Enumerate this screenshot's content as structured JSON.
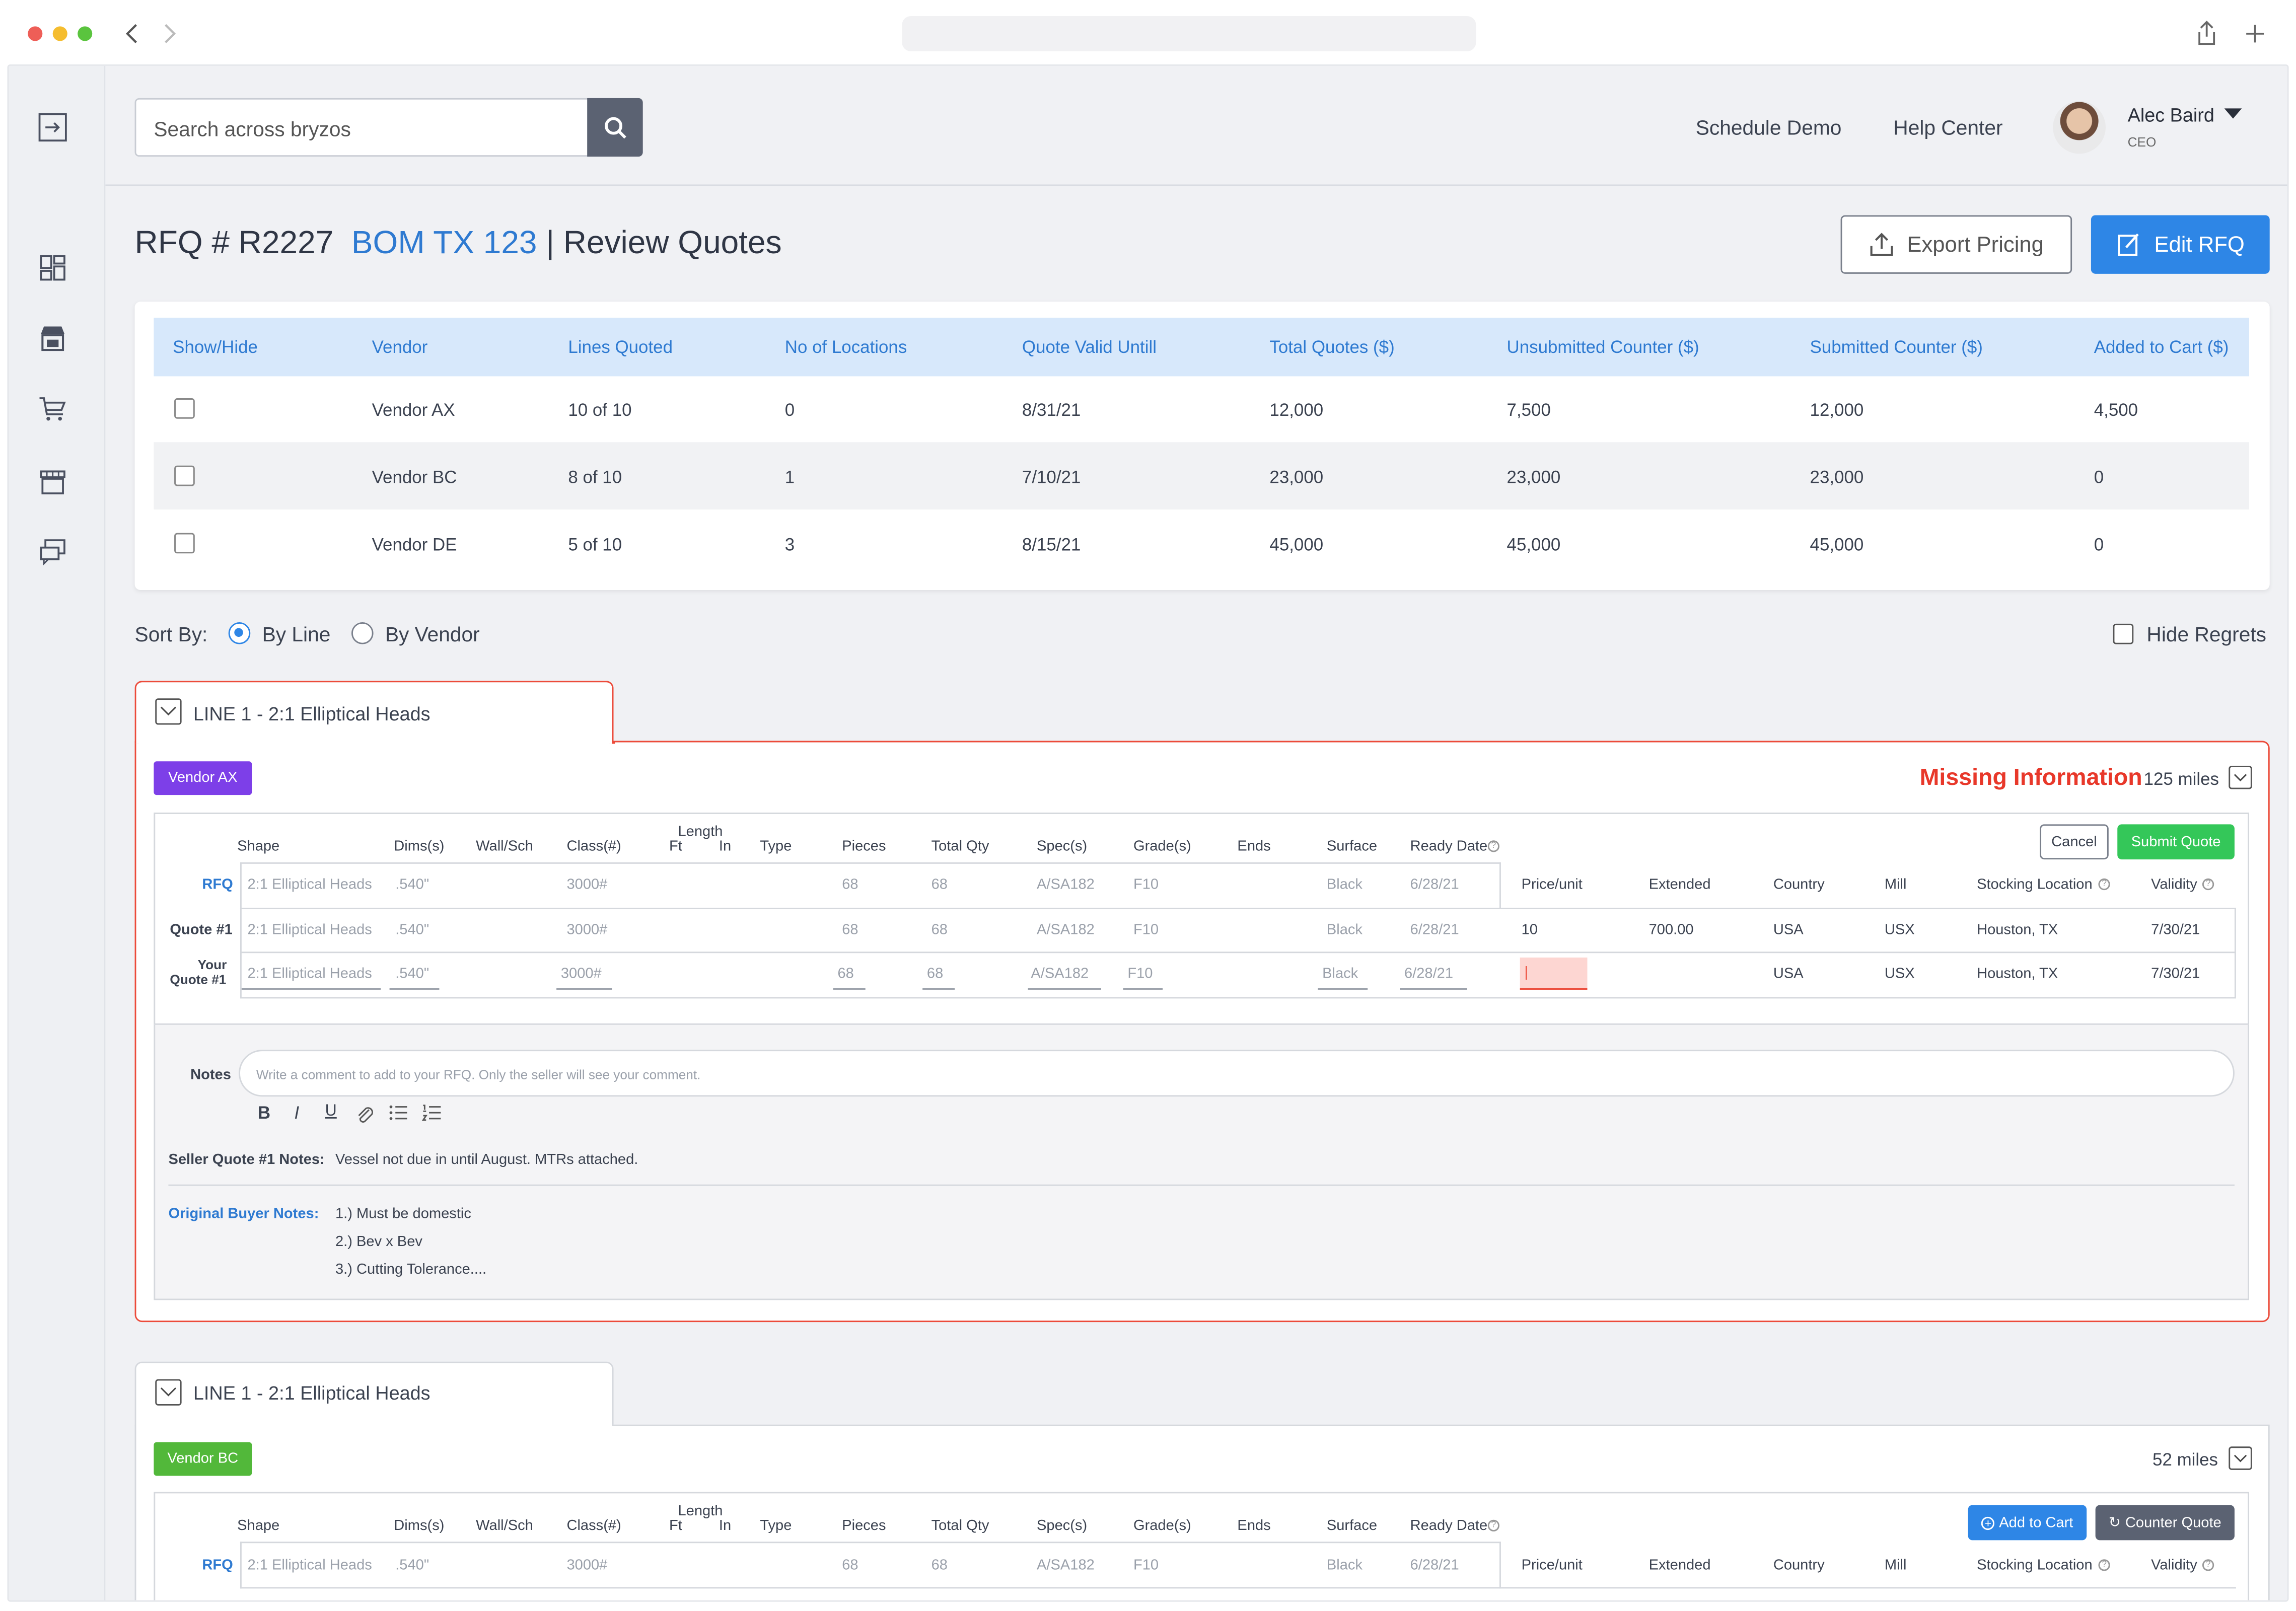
{
  "window": {
    "traffic": [
      "#ee5e57",
      "#f5bd2f",
      "#5ac43e"
    ]
  },
  "topbar": {
    "search_placeholder": "Search across bryzos",
    "schedule_demo": "Schedule Demo",
    "help_center": "Help Center",
    "user_name": "Alec Baird",
    "user_role": "CEO"
  },
  "sidebar": {
    "icons": [
      "exit-icon",
      "dashboard-icon",
      "storefront-icon",
      "cart-icon",
      "store-icon",
      "chat-icon"
    ]
  },
  "page": {
    "title_prefix": "RFQ # R2227",
    "title_link": "BOM TX 123",
    "title_suffix": "| Review Quotes",
    "export_label": "Export Pricing",
    "edit_label": "Edit RFQ"
  },
  "summary": {
    "headers": [
      "Show/Hide",
      "Vendor",
      "Lines Quoted",
      "No of Locations",
      "Quote Valid Untill",
      "Total Quotes ($)",
      "Unsubmitted Counter ($)",
      "Submitted Counter ($)",
      "Added to Cart ($)"
    ],
    "rows": [
      [
        "Vendor AX",
        "10 of 10",
        "0",
        "8/31/21",
        "12,000",
        "7,500",
        "12,000",
        "4,500"
      ],
      [
        "Vendor BC",
        "8 of 10",
        "1",
        "7/10/21",
        "23,000",
        "23,000",
        "23,000",
        "0"
      ],
      [
        "Vendor DE",
        "5 of 10",
        "3",
        "8/15/21",
        "45,000",
        "45,000",
        "45,000",
        "0"
      ]
    ]
  },
  "sort": {
    "label": "Sort By:",
    "by_line": "By Line",
    "by_vendor": "By Vendor",
    "hide_regrets": "Hide Regrets",
    "selected": "By Line"
  },
  "line1": {
    "title": "LINE 1 - 2:1 Elliptical Heads",
    "vendor": "Vendor AX",
    "vendor_color": "#7d3fe8",
    "alert": "Missing Information",
    "miles": "125 miles",
    "cancel": "Cancel",
    "submit": "Submit Quote",
    "headers": [
      "Shape",
      "Dims(s)",
      "Wall/Sch",
      "Class(#)",
      "Length",
      "Ft",
      "In",
      "Type",
      "Pieces",
      "Total Qty",
      "Spec(s)",
      "Grade(s)",
      "Ends",
      "Surface",
      "Ready Date"
    ],
    "price_headers": [
      "Price/unit",
      "Extended",
      "Country",
      "Mill",
      "Stocking Location",
      "Validity"
    ],
    "rfq_label": "RFQ",
    "quote_label": "Quote #1",
    "your_label_1": "Your",
    "your_label_2": "Quote #1",
    "rfq_row": [
      "2:1 Elliptical Heads",
      ".540\"",
      "3000#",
      "68",
      "68",
      "A/SA182",
      "F10",
      "Black",
      "6/28/21"
    ],
    "quote_row": [
      "2:1 Elliptical Heads",
      ".540\"",
      "3000#",
      "68",
      "68",
      "A/SA182",
      "F10",
      "Black",
      "6/28/21"
    ],
    "quote_price": [
      "10",
      "700.00",
      "USA",
      "USX",
      "Houston, TX",
      "7/30/21"
    ],
    "your_row": [
      "2:1 Elliptical Heads",
      ".540\"",
      "3000#",
      "68",
      "68",
      "A/SA182",
      "F10",
      "Black",
      "6/28/21"
    ],
    "your_price": [
      "|",
      "USA",
      "USX",
      "Houston, TX",
      "7/30/21"
    ],
    "notes_label": "Notes",
    "notes_placeholder": "Write a comment to add to your RFQ. Only the seller will see your comment.",
    "fmt": [
      "B",
      "I",
      "U"
    ],
    "seller_label": "Seller Quote #1 Notes:",
    "seller_text": "Vessel not due in until August. MTRs attached.",
    "buyer_label": "Original Buyer Notes:",
    "buyer_notes": [
      "1.) Must be domestic",
      "2.) Bev x Bev",
      "3.) Cutting Tolerance...."
    ]
  },
  "line2": {
    "title": "LINE 1 - 2:1 Elliptical Heads",
    "vendor": "Vendor BC",
    "vendor_color": "#52b83a",
    "miles": "52 miles",
    "add_cart": "Add to Cart",
    "counter": "Counter Quote",
    "headers": [
      "Shape",
      "Dims(s)",
      "Wall/Sch",
      "Class(#)",
      "Length",
      "Ft",
      "In",
      "Type",
      "Pieces",
      "Total Qty",
      "Spec(s)",
      "Grade(s)",
      "Ends",
      "Surface",
      "Ready Date"
    ],
    "price_headers": [
      "Price/unit",
      "Extended",
      "Country",
      "Mill",
      "Stocking Location",
      "Validity"
    ],
    "rfq_label": "RFQ",
    "rfq_row": [
      "2:1 Elliptical Heads",
      ".540\"",
      "3000#",
      "68",
      "68",
      "A/SA182",
      "F10",
      "Black",
      "6/28/21"
    ]
  }
}
